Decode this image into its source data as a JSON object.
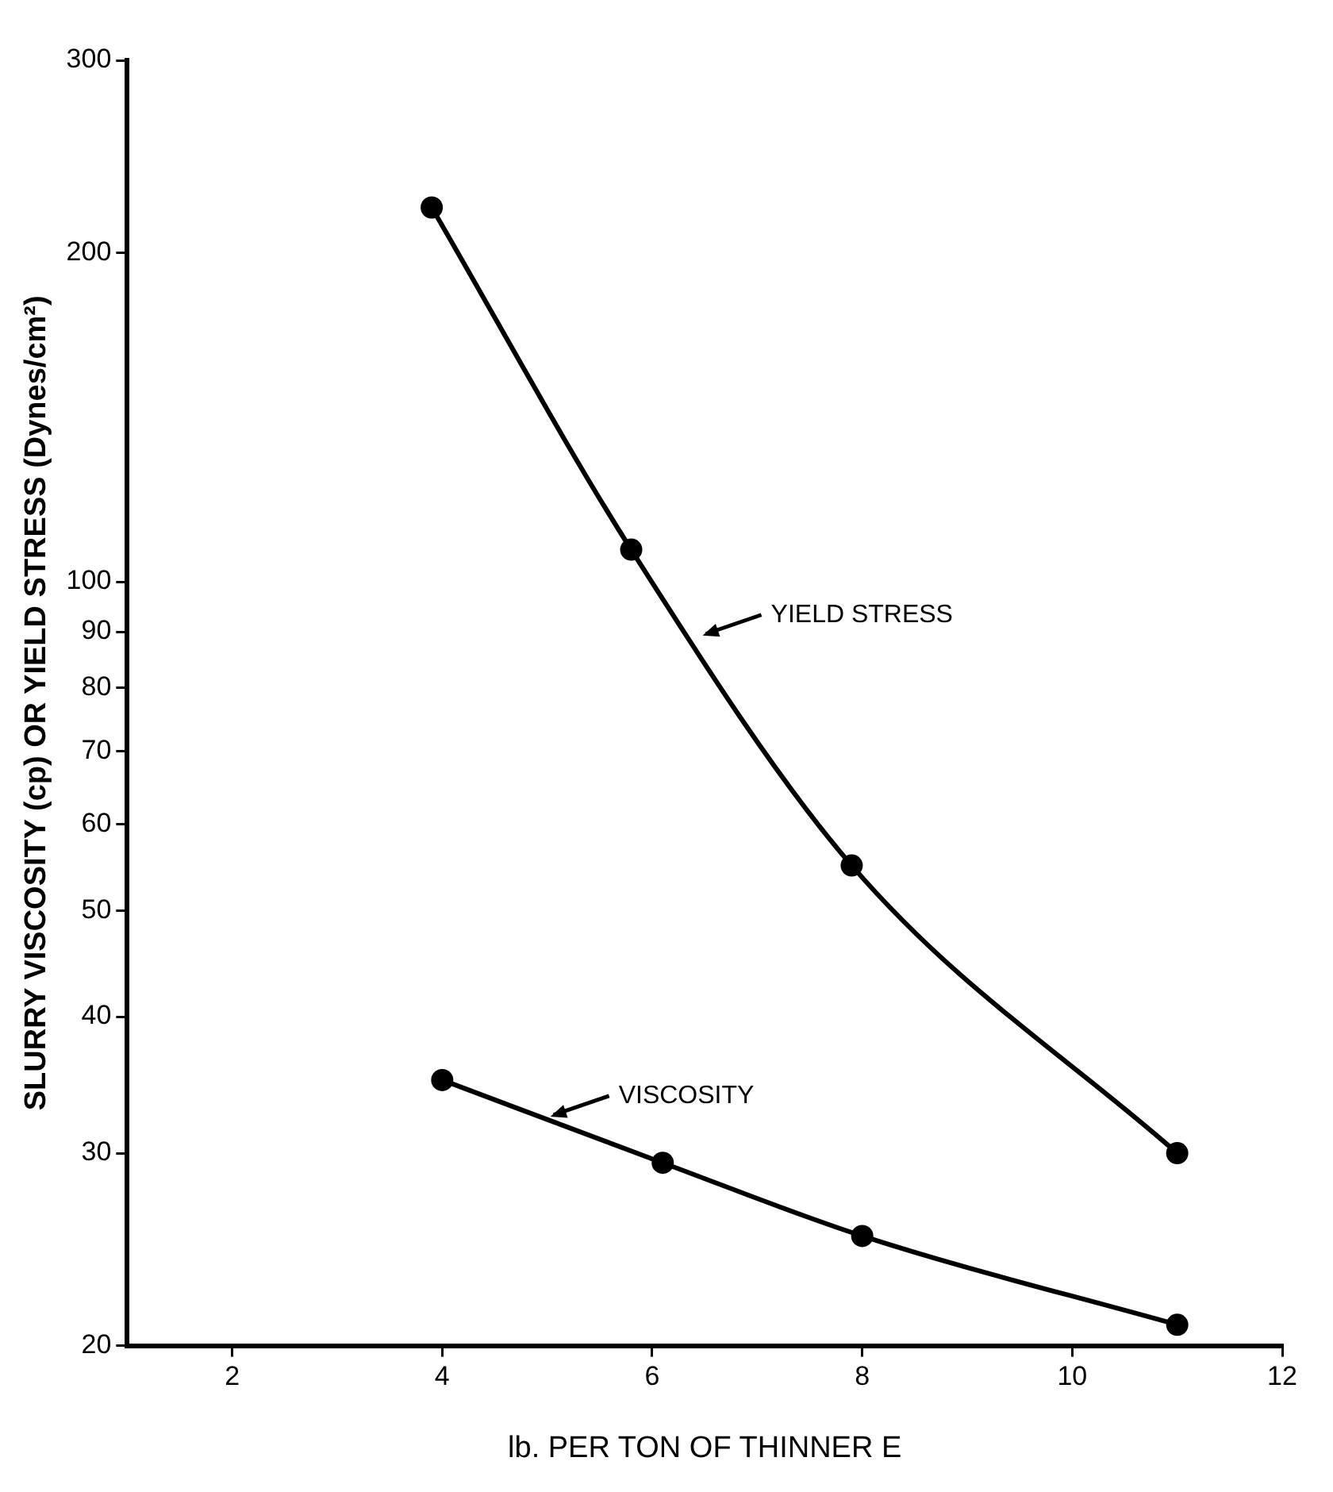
{
  "chart_data": {
    "type": "line",
    "xlabel": "lb. PER TON OF THINNER E",
    "ylabel": "SLURRY VISCOSITY (cp) OR YIELD STRESS (Dynes/cm²)",
    "log": "y",
    "grid": false,
    "legend": false,
    "marker": "circle",
    "line_style": "solid",
    "xlim": [
      1,
      12
    ],
    "xticks": [
      2,
      4,
      6,
      8,
      10,
      12
    ],
    "ylim": [
      20,
      300
    ],
    "yticks": [
      20,
      30,
      40,
      50,
      60,
      70,
      80,
      90,
      100,
      200,
      300
    ],
    "series": [
      {
        "color": "#000000",
        "x": [
          3.9,
          5.8,
          7.9,
          11
        ],
        "values": [
          220,
          107,
          55,
          30
        ]
      },
      {
        "color": "#000000",
        "x": [
          4,
          6.1,
          8,
          11
        ],
        "values": [
          35,
          29.4,
          25.2,
          20.9
        ]
      }
    ],
    "annotations": [
      {
        "text": "YIELD STRESS",
        "x": 6.45,
        "y": 89
      },
      {
        "text": "VISCOSITY",
        "x": 5,
        "y": 32.3
      }
    ]
  }
}
